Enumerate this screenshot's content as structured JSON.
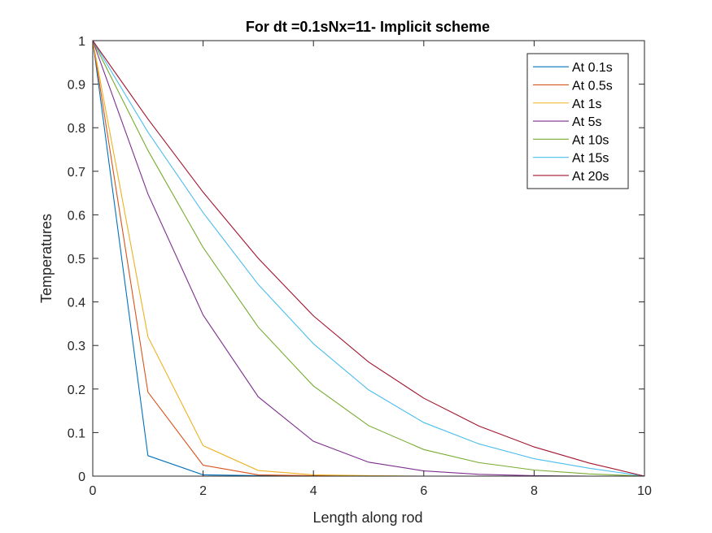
{
  "chart_data": {
    "type": "line",
    "title": "For dt =0.1sNx=11- Implicit scheme",
    "xlabel": "Length along rod",
    "ylabel": "Temperatures",
    "xlim": [
      0,
      10
    ],
    "ylim": [
      0,
      1
    ],
    "xticks": [
      "0",
      "2",
      "4",
      "6",
      "8",
      "10"
    ],
    "yticks": [
      "0",
      "0.1",
      "0.2",
      "0.3",
      "0.4",
      "0.5",
      "0.6",
      "0.7",
      "0.8",
      "0.9",
      "1"
    ],
    "grid": false,
    "legend_position": "top-right",
    "x": [
      0,
      1,
      2,
      3,
      4,
      5,
      6,
      7,
      8,
      9,
      10
    ],
    "series": [
      {
        "name": "At 0.1s",
        "color": "#0072BD",
        "values": [
          1,
          0.047,
          0.003,
          0.001,
          0,
          0,
          0,
          0,
          0,
          0,
          0
        ]
      },
      {
        "name": "At 0.5s",
        "color": "#D95319",
        "values": [
          1,
          0.193,
          0.025,
          0.003,
          0.001,
          0,
          0,
          0,
          0,
          0,
          0
        ]
      },
      {
        "name": "At 1s",
        "color": "#EDB120",
        "values": [
          1,
          0.32,
          0.07,
          0.013,
          0.003,
          0.001,
          0,
          0,
          0,
          0,
          0
        ]
      },
      {
        "name": "At 5s",
        "color": "#7E2F8E",
        "values": [
          1,
          0.648,
          0.37,
          0.182,
          0.08,
          0.032,
          0.012,
          0.004,
          0.001,
          0,
          0
        ]
      },
      {
        "name": "At 10s",
        "color": "#77AC30",
        "values": [
          1,
          0.748,
          0.525,
          0.342,
          0.207,
          0.116,
          0.061,
          0.031,
          0.014,
          0.005,
          0
        ]
      },
      {
        "name": "At 15s",
        "color": "#4DBEEE",
        "values": [
          1,
          0.79,
          0.605,
          0.44,
          0.304,
          0.198,
          0.123,
          0.074,
          0.04,
          0.018,
          0
        ]
      },
      {
        "name": "At 20s",
        "color": "#A2142F",
        "values": [
          1,
          0.82,
          0.652,
          0.5,
          0.368,
          0.262,
          0.179,
          0.115,
          0.067,
          0.03,
          0
        ]
      }
    ]
  }
}
